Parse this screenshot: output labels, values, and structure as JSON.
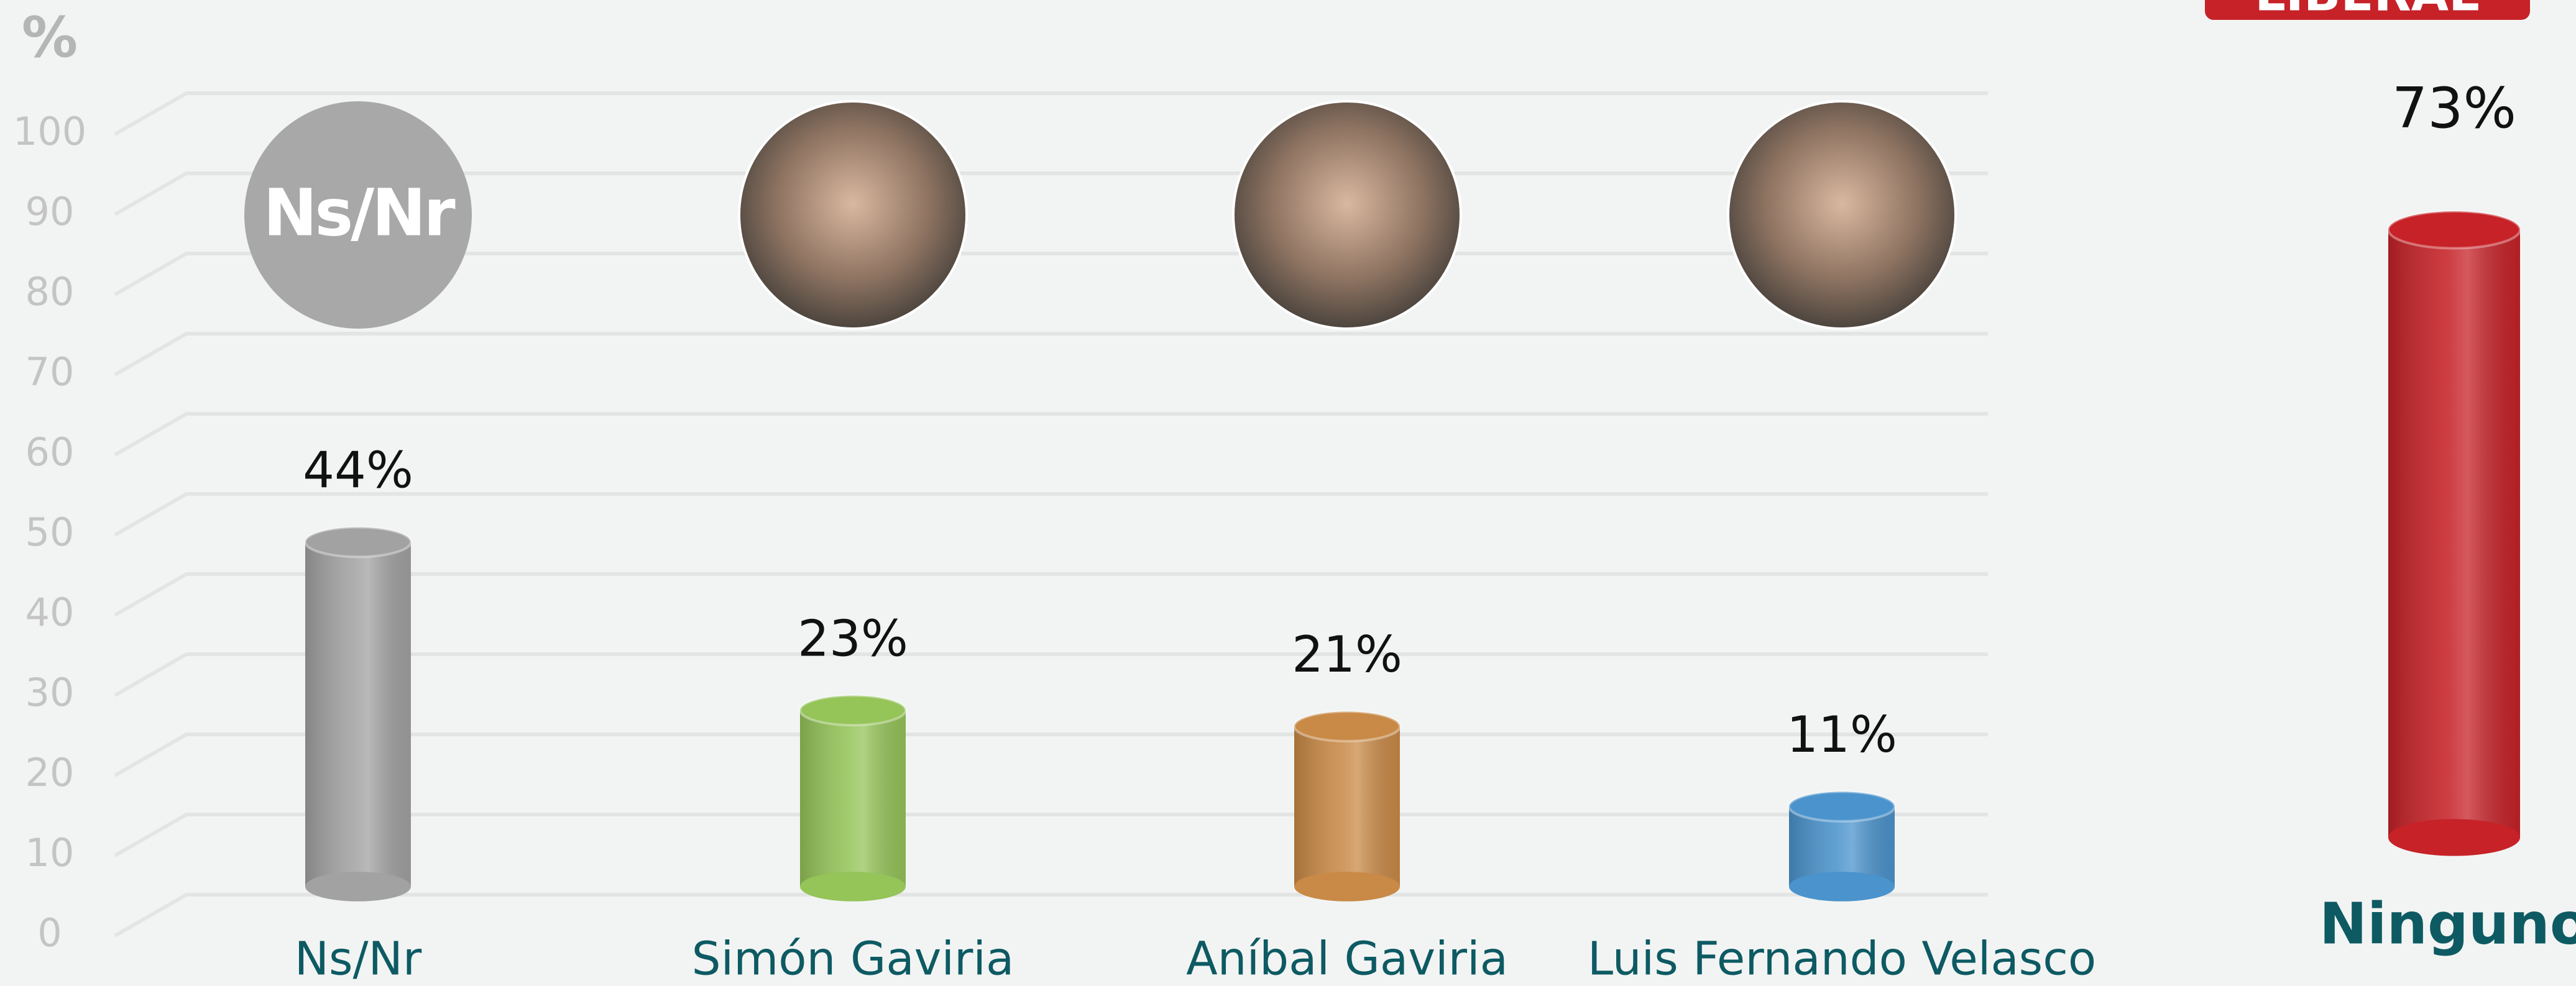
{
  "chart_data": [
    {
      "type": "bar",
      "y_label": "%",
      "icon_text": "Ns/Nr",
      "categories": [
        "Ns/Nr",
        "Simón Gaviria",
        "Aníbal Gaviria",
        "Luis Fernando Velasco"
      ],
      "values": [
        44,
        23,
        21,
        11
      ],
      "value_labels": [
        "44%",
        "23%",
        "21%",
        "11%"
      ],
      "colors": [
        "#a2a2a2",
        "#95c459",
        "#c98a47",
        "#4b93cc"
      ],
      "ylim": [
        0,
        100
      ],
      "yticks": [
        0,
        10,
        20,
        30,
        40,
        50,
        60,
        70,
        80,
        90,
        100
      ],
      "grid": true
    },
    {
      "type": "bar",
      "badge": "LIBERAL",
      "categories": [
        "Ninguno"
      ],
      "values": [
        73
      ],
      "value_labels": [
        "73%"
      ],
      "colors": [
        "#c62228"
      ]
    }
  ]
}
